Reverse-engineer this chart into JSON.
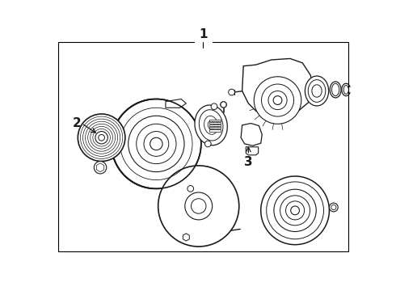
{
  "title": "1",
  "label_2": "2",
  "label_3": "3",
  "bg_color": "#ffffff",
  "line_color": "#1a1a1a",
  "border_color": "#000000",
  "fig_width": 4.9,
  "fig_height": 3.6,
  "dpi": 100
}
